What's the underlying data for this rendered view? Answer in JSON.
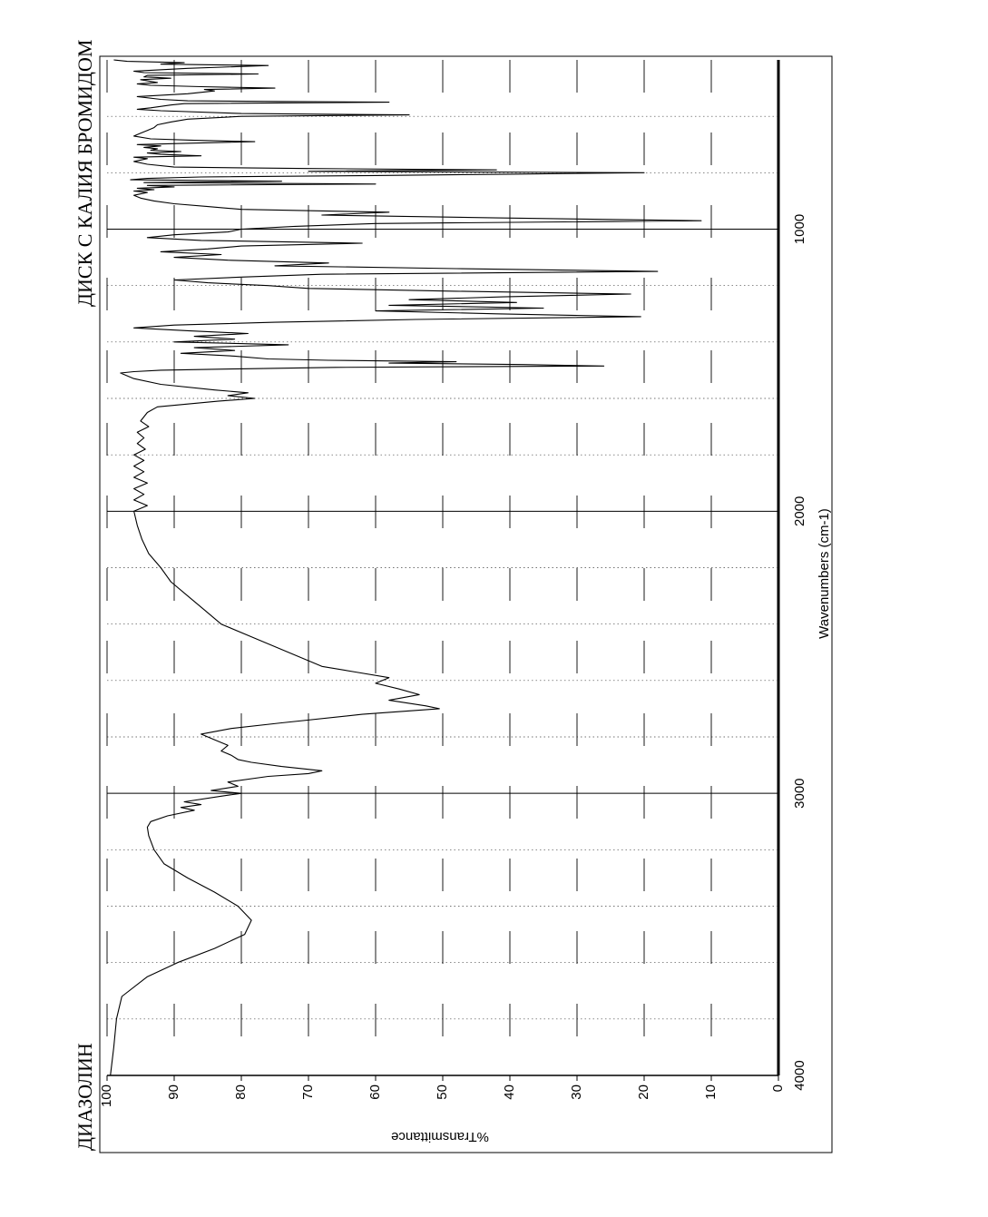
{
  "header": {
    "sample_name": "ДИАЗОЛИН",
    "method": "ДИСК С КАЛИЯ БРОМИДОМ"
  },
  "chart_data": {
    "type": "line",
    "title": "",
    "xlabel": "Wavenumbers (cm-1)",
    "ylabel": "%Transmittance",
    "xlim": [
      4000,
      400
    ],
    "ylim": [
      0,
      100
    ],
    "x_ticks": [
      4000,
      3000,
      2000,
      1000
    ],
    "y_ticks": [
      100,
      90,
      80,
      70,
      60,
      50,
      40,
      30,
      20,
      10,
      0
    ],
    "grid": true,
    "color": "#000000",
    "series": [
      {
        "name": "",
        "points": [
          [
            4000,
            99.5
          ],
          [
            3900,
            99.0
          ],
          [
            3800,
            98.6
          ],
          [
            3720,
            97.8
          ],
          [
            3650,
            94.0
          ],
          [
            3600,
            89.5
          ],
          [
            3550,
            84.0
          ],
          [
            3500,
            79.5
          ],
          [
            3450,
            78.5
          ],
          [
            3400,
            80.5
          ],
          [
            3350,
            84.0
          ],
          [
            3300,
            88.0
          ],
          [
            3250,
            91.5
          ],
          [
            3200,
            93.0
          ],
          [
            3150,
            93.8
          ],
          [
            3120,
            94.0
          ],
          [
            3100,
            93.5
          ],
          [
            3080,
            91.0
          ],
          [
            3060,
            87.0
          ],
          [
            3050,
            89.0
          ],
          [
            3040,
            86.0
          ],
          [
            3030,
            88.5
          ],
          [
            3010,
            83.0
          ],
          [
            3000,
            80.0
          ],
          [
            2990,
            84.5
          ],
          [
            2975,
            80.5
          ],
          [
            2960,
            82.0
          ],
          [
            2940,
            76.0
          ],
          [
            2930,
            70.0
          ],
          [
            2920,
            68.0
          ],
          [
            2905,
            74.0
          ],
          [
            2890,
            78.5
          ],
          [
            2880,
            80.5
          ],
          [
            2865,
            81.5
          ],
          [
            2850,
            83.0
          ],
          [
            2830,
            82.0
          ],
          [
            2810,
            84.0
          ],
          [
            2790,
            86.0
          ],
          [
            2770,
            81.5
          ],
          [
            2750,
            74.0
          ],
          [
            2720,
            62.0
          ],
          [
            2700,
            50.5
          ],
          [
            2690,
            52.5
          ],
          [
            2670,
            58.0
          ],
          [
            2650,
            53.5
          ],
          [
            2630,
            56.5
          ],
          [
            2610,
            60.0
          ],
          [
            2590,
            58.0
          ],
          [
            2570,
            63.0
          ],
          [
            2550,
            68.0
          ],
          [
            2500,
            73.0
          ],
          [
            2450,
            78.0
          ],
          [
            2400,
            83.0
          ],
          [
            2350,
            85.5
          ],
          [
            2300,
            88.0
          ],
          [
            2250,
            90.5
          ],
          [
            2200,
            92.0
          ],
          [
            2150,
            93.8
          ],
          [
            2100,
            94.8
          ],
          [
            2050,
            95.5
          ],
          [
            2000,
            96.0
          ],
          [
            1980,
            94.0
          ],
          [
            1960,
            96.0
          ],
          [
            1940,
            94.5
          ],
          [
            1920,
            96.0
          ],
          [
            1900,
            94.0
          ],
          [
            1880,
            96.0
          ],
          [
            1860,
            94.5
          ],
          [
            1840,
            96.0
          ],
          [
            1820,
            94.5
          ],
          [
            1800,
            96.0
          ],
          [
            1780,
            94.3
          ],
          [
            1760,
            95.5
          ],
          [
            1740,
            94.5
          ],
          [
            1720,
            95.5
          ],
          [
            1700,
            93.8
          ],
          [
            1680,
            95.0
          ],
          [
            1650,
            94.0
          ],
          [
            1630,
            92.5
          ],
          [
            1620,
            88.0
          ],
          [
            1610,
            83.5
          ],
          [
            1600,
            78.0
          ],
          [
            1590,
            82.0
          ],
          [
            1580,
            79.0
          ],
          [
            1570,
            84.0
          ],
          [
            1550,
            92.0
          ],
          [
            1530,
            96.0
          ],
          [
            1510,
            98.0
          ],
          [
            1505,
            96.0
          ],
          [
            1500,
            92.0
          ],
          [
            1495,
            80.0
          ],
          [
            1490,
            66.0
          ],
          [
            1485,
            26.0
          ],
          [
            1480,
            38.0
          ],
          [
            1475,
            58.0
          ],
          [
            1470,
            48.0
          ],
          [
            1465,
            67.0
          ],
          [
            1460,
            76.0
          ],
          [
            1450,
            81.0
          ],
          [
            1440,
            89.0
          ],
          [
            1430,
            81.0
          ],
          [
            1420,
            87.0
          ],
          [
            1410,
            73.0
          ],
          [
            1400,
            90.0
          ],
          [
            1390,
            81.0
          ],
          [
            1380,
            87.0
          ],
          [
            1370,
            79.0
          ],
          [
            1360,
            88.0
          ],
          [
            1350,
            96.0
          ],
          [
            1340,
            90.0
          ],
          [
            1330,
            75.0
          ],
          [
            1320,
            54.0
          ],
          [
            1310,
            20.5
          ],
          [
            1300,
            42.0
          ],
          [
            1290,
            60.0
          ],
          [
            1280,
            35.0
          ],
          [
            1270,
            58.0
          ],
          [
            1260,
            39.0
          ],
          [
            1250,
            55.0
          ],
          [
            1240,
            41.0
          ],
          [
            1230,
            22.0
          ],
          [
            1220,
            48.0
          ],
          [
            1210,
            70.0
          ],
          [
            1200,
            76.0
          ],
          [
            1190,
            85.0
          ],
          [
            1180,
            90.0
          ],
          [
            1170,
            80.0
          ],
          [
            1160,
            68.0
          ],
          [
            1150,
            18.0
          ],
          [
            1140,
            48.0
          ],
          [
            1130,
            75.0
          ],
          [
            1120,
            67.0
          ],
          [
            1110,
            82.0
          ],
          [
            1100,
            90.0
          ],
          [
            1090,
            83.0
          ],
          [
            1080,
            92.0
          ],
          [
            1070,
            85.0
          ],
          [
            1060,
            80.0
          ],
          [
            1050,
            62.0
          ],
          [
            1040,
            86.0
          ],
          [
            1030,
            94.0
          ],
          [
            1020,
            90.0
          ],
          [
            1010,
            82.0
          ],
          [
            1000,
            80.0
          ],
          [
            990,
            72.0
          ],
          [
            980,
            60.0
          ],
          [
            970,
            11.5
          ],
          [
            960,
            42.0
          ],
          [
            950,
            68.0
          ],
          [
            940,
            58.0
          ],
          [
            930,
            80.0
          ],
          [
            920,
            85.0
          ],
          [
            910,
            90.0
          ],
          [
            900,
            93.0
          ],
          [
            890,
            95.0
          ],
          [
            880,
            96.0
          ],
          [
            870,
            94.0
          ],
          [
            865,
            96.0
          ],
          [
            860,
            93.0
          ],
          [
            855,
            95.5
          ],
          [
            850,
            90.0
          ],
          [
            845,
            94.0
          ],
          [
            840,
            60.0
          ],
          [
            835,
            94.5
          ],
          [
            830,
            74.0
          ],
          [
            825,
            96.5
          ],
          [
            820,
            94.0
          ],
          [
            815,
            86.0
          ],
          [
            810,
            60.0
          ],
          [
            805,
            40.0
          ],
          [
            800,
            20.0
          ],
          [
            795,
            70.0
          ],
          [
            790,
            42.0
          ],
          [
            785,
            70.0
          ],
          [
            780,
            90.0
          ],
          [
            770,
            94.0
          ],
          [
            760,
            96.0
          ],
          [
            750,
            94.0
          ],
          [
            745,
            96.0
          ],
          [
            740,
            86.0
          ],
          [
            735,
            92.0
          ],
          [
            730,
            94.0
          ],
          [
            725,
            89.0
          ],
          [
            720,
            93.5
          ],
          [
            715,
            92.5
          ],
          [
            710,
            94.5
          ],
          [
            705,
            92.0
          ],
          [
            700,
            95.5
          ],
          [
            695,
            87.0
          ],
          [
            690,
            78.0
          ],
          [
            685,
            87.0
          ],
          [
            680,
            93.5
          ],
          [
            670,
            96.0
          ],
          [
            660,
            95.0
          ],
          [
            650,
            94.0
          ],
          [
            640,
            93.0
          ],
          [
            630,
            92.5
          ],
          [
            620,
            90.5
          ],
          [
            610,
            88.0
          ],
          [
            600,
            80.0
          ],
          [
            595,
            55.0
          ],
          [
            590,
            80.0
          ],
          [
            580,
            92.0
          ],
          [
            575,
            95.5
          ],
          [
            570,
            93.5
          ],
          [
            560,
            90.5
          ],
          [
            555,
            88.5
          ],
          [
            550,
            58.0
          ],
          [
            545,
            88.0
          ],
          [
            540,
            92.0
          ],
          [
            530,
            95.5
          ],
          [
            520,
            88.0
          ],
          [
            510,
            84.0
          ],
          [
            505,
            85.5
          ],
          [
            500,
            75.0
          ],
          [
            495,
            86.0
          ],
          [
            490,
            93.5
          ],
          [
            485,
            95.5
          ],
          [
            480,
            92.5
          ],
          [
            470,
            95.0
          ],
          [
            465,
            90.5
          ],
          [
            460,
            94.5
          ],
          [
            455,
            94.0
          ],
          [
            450,
            77.5
          ],
          [
            445,
            94.5
          ],
          [
            440,
            96.0
          ],
          [
            430,
            88.0
          ],
          [
            420,
            76.0
          ],
          [
            415,
            92.0
          ],
          [
            410,
            88.5
          ],
          [
            405,
            97.0
          ],
          [
            400,
            99.0
          ]
        ]
      }
    ]
  }
}
